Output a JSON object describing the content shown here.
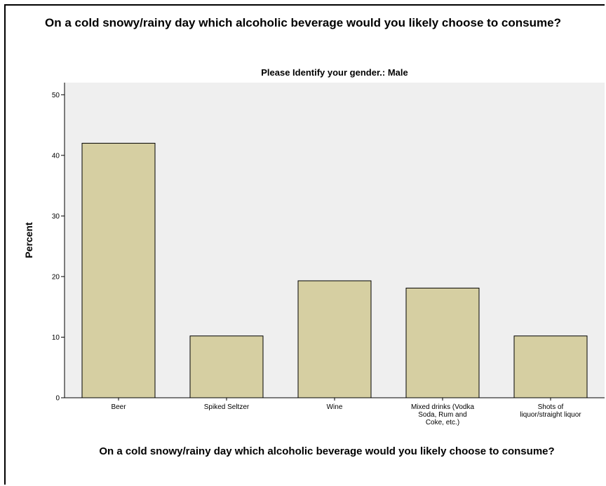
{
  "chart_data": {
    "type": "bar",
    "title": "On a cold snowy/rainy day which alcoholic beverage would you likely choose to consume?",
    "panel_title": "Please Identify your gender.: Male",
    "xlabel": "On a cold snowy/rainy day which alcoholic beverage would you likely choose to consume?",
    "ylabel": "Percent",
    "categories": [
      "Beer",
      "Spiked Seltzer",
      "Wine",
      "Mixed drinks (Vodka Soda, Rum and Coke, etc.)",
      "Shots of liquor/straight liquor"
    ],
    "category_label_lines": [
      [
        "Beer"
      ],
      [
        "Spiked Seltzer"
      ],
      [
        "Wine"
      ],
      [
        "Mixed drinks (Vodka",
        "Soda, Rum and",
        "Coke, etc.)"
      ],
      [
        "Shots of",
        "liquor/straight liquor"
      ]
    ],
    "values": [
      42.0,
      10.2,
      19.3,
      18.1,
      10.2
    ],
    "ylim": [
      0,
      52
    ],
    "yticks": [
      0,
      10,
      20,
      30,
      40,
      50
    ],
    "grid": false,
    "colors": {
      "bar_fill": "#d6cfa2",
      "bar_stroke": "#000000",
      "plot_background": "#efefef",
      "axis": "#000000"
    }
  }
}
